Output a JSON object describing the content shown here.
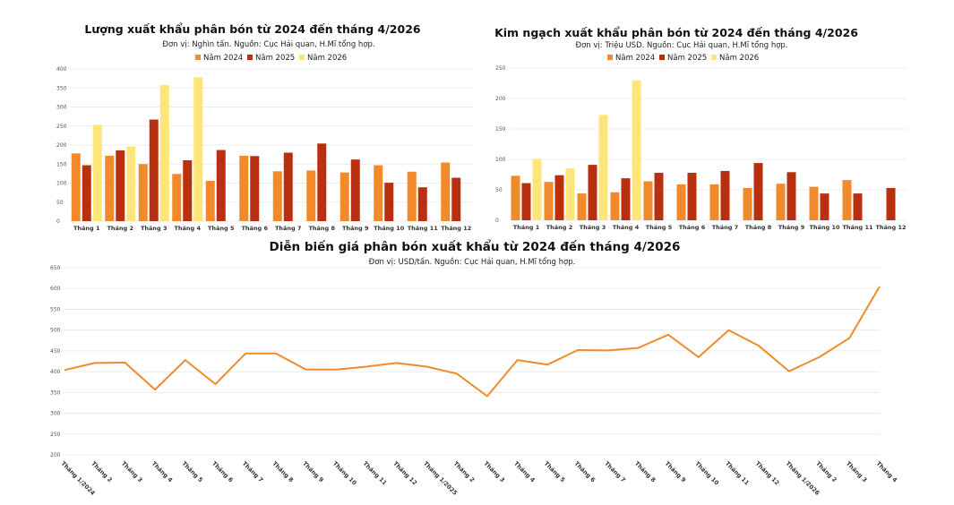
{
  "colors": {
    "y2024": "#f08a2a",
    "y2025": "#b8300f",
    "y2026": "#fde57a",
    "line": "#f08a2a",
    "grid": "#e6e6e6"
  },
  "chart_data": [
    {
      "type": "bar",
      "title": "Lượng xuất khẩu phân bón từ 2024 đến tháng 4/2026",
      "subtitle": "Đơn vị: Nghìn tấn. Nguồn: Cục Hải quan, H.Mĩ tổng hợp.",
      "categories": [
        "Tháng 1",
        "Tháng 2",
        "Tháng 3",
        "Tháng 4",
        "Tháng 5",
        "Tháng 6",
        "Tháng 7",
        "Tháng 8",
        "Tháng 9",
        "Tháng 10",
        "Tháng 11",
        "Tháng 12"
      ],
      "series": [
        {
          "name": "Năm 2024",
          "values": [
            178,
            172,
            150,
            124,
            106,
            172,
            131,
            133,
            128,
            147,
            130,
            154
          ]
        },
        {
          "name": "Năm 2025",
          "values": [
            147,
            186,
            267,
            160,
            187,
            171,
            180,
            204,
            162,
            101,
            89,
            114
          ]
        },
        {
          "name": "Năm 2026",
          "values": [
            253,
            196,
            358,
            378,
            null,
            null,
            null,
            null,
            null,
            null,
            null,
            null
          ]
        }
      ],
      "ylim": [
        0,
        400
      ],
      "yticks": [
        0,
        50,
        100,
        150,
        200,
        250,
        300,
        350,
        400
      ],
      "legend": "top",
      "grid": true
    },
    {
      "type": "bar",
      "title": "Kim ngạch xuất khẩu phân bón từ 2024 đến tháng 4/2026",
      "subtitle": "Đơn vị: Triệu USD. Nguồn: Cục Hải quan, H.Mĩ tổng hợp.",
      "categories": [
        "Tháng 1",
        "Tháng 2",
        "Tháng 3",
        "Tháng 4",
        "Tháng 5",
        "Tháng 6",
        "Tháng 7",
        "Tháng 8",
        "Tháng 9",
        "Tháng 10",
        "Tháng 11",
        "Tháng 12"
      ],
      "series": [
        {
          "name": "Năm 2024",
          "values": [
            73,
            63,
            44,
            46,
            64,
            59,
            59,
            53,
            60,
            55,
            66,
            null
          ]
        },
        {
          "name": "Năm 2025",
          "values": [
            61,
            74,
            91,
            69,
            78,
            78,
            81,
            94,
            79,
            44,
            44,
            53
          ]
        },
        {
          "name": "Năm 2026",
          "values": [
            101,
            85,
            173,
            230,
            null,
            null,
            null,
            null,
            null,
            null,
            null,
            null
          ]
        }
      ],
      "ylim": [
        0,
        250
      ],
      "yticks": [
        0,
        50,
        100,
        150,
        200,
        250
      ],
      "legend": "top",
      "grid": true
    },
    {
      "type": "line",
      "title": "Diễn biến giá phân bón xuất khẩu từ 2024 đến tháng 4/2026",
      "subtitle": "Đơn vị: USD/tấn. Nguồn: Cục Hải quan, H.Mĩ tổng hợp.",
      "x": [
        "Tháng 1/2024",
        "Tháng 2",
        "Tháng 3",
        "Tháng 4",
        "Tháng 5",
        "Tháng 6",
        "Tháng 7",
        "Tháng 8",
        "Tháng 9",
        "Tháng 10",
        "Tháng 11",
        "Tháng 12",
        "Tháng 1/2025",
        "Tháng 2",
        "Tháng 3",
        "Tháng 4",
        "Tháng 5",
        "Tháng 6",
        "Tháng 7",
        "Tháng 8",
        "Tháng 9",
        "Tháng 10",
        "Tháng 11",
        "Tháng 12",
        "Tháng 1/2026",
        "Tháng 2",
        "Tháng 3",
        "Tháng 4"
      ],
      "series": [
        {
          "values": [
            404,
            421,
            422,
            357,
            428,
            370,
            444,
            444,
            405,
            405,
            412,
            421,
            412,
            395,
            341,
            428,
            417,
            452,
            451,
            457,
            489,
            435,
            500,
            462,
            401,
            435,
            481,
            605
          ]
        }
      ],
      "ylim": [
        200,
        650
      ],
      "yticks": [
        200,
        250,
        300,
        350,
        400,
        450,
        500,
        550,
        600,
        650
      ],
      "grid": true
    }
  ]
}
